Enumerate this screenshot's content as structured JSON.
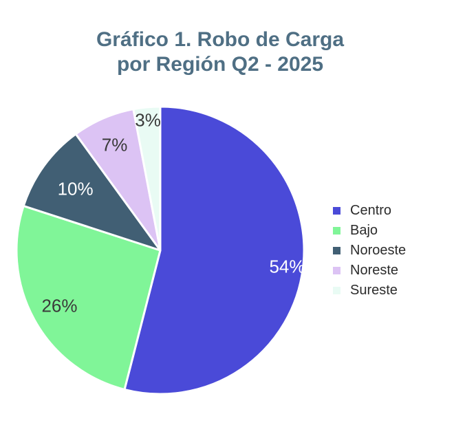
{
  "chart_data": {
    "type": "pie",
    "title_lines": [
      "Gráfico 1. Robo de Carga",
      "por Región Q2 - 2025"
    ],
    "slices": [
      {
        "name": "Centro",
        "value": 54,
        "label": "54%",
        "color": "#4a4ad8",
        "label_color": "#ffffff"
      },
      {
        "name": "Bajo",
        "value": 26,
        "label": "26%",
        "color": "#80f598",
        "label_color": "#3a3a3a"
      },
      {
        "name": "Noroeste",
        "value": 10,
        "label": "10%",
        "color": "#415f74",
        "label_color": "#ffffff"
      },
      {
        "name": "Noreste",
        "value": 7,
        "label": "7%",
        "color": "#dcc3f4",
        "label_color": "#3a3a3a"
      },
      {
        "name": "Sureste",
        "value": 3,
        "label": "3%",
        "color": "#e9fbf4",
        "label_color": "#3a3a3a"
      }
    ],
    "start_angle": "12 o'clock",
    "direction": "clockwise",
    "legend_position": "right"
  }
}
